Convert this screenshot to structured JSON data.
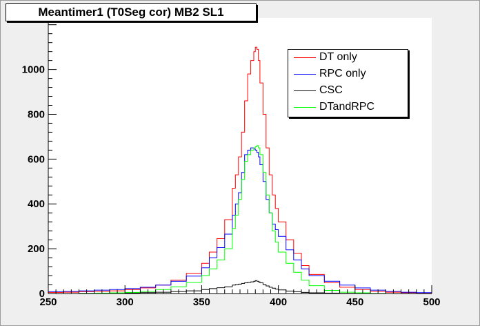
{
  "window": {
    "title": "Meantimer1 (T0Seg cor)  MB2 SL1"
  },
  "chart_data": {
    "type": "line",
    "title": "Meantimer1 (T0Seg cor)  MB2 SL1",
    "xlabel": "",
    "ylabel": "",
    "xlim": [
      250,
      500
    ],
    "ylim": [
      0,
      1230
    ],
    "x_ticks": [
      250,
      300,
      350,
      400,
      450,
      500
    ],
    "y_ticks": [
      0,
      200,
      400,
      600,
      800,
      1000
    ],
    "grid": false,
    "legend_position": "top-right",
    "step_histogram": true,
    "x": [
      250,
      260,
      270,
      280,
      290,
      300,
      310,
      320,
      330,
      340,
      350,
      355,
      360,
      365,
      370,
      372,
      374,
      376,
      378,
      380,
      382,
      384,
      385,
      386,
      387,
      388,
      390,
      392,
      394,
      396,
      398,
      400,
      405,
      410,
      415,
      420,
      430,
      440,
      450,
      460,
      470,
      480,
      490,
      500
    ],
    "series": [
      {
        "name": "DT only",
        "color": "#ff0000",
        "values": [
          5,
          6,
          8,
          10,
          12,
          18,
          25,
          38,
          60,
          90,
          135,
          185,
          245,
          330,
          470,
          530,
          610,
          720,
          860,
          980,
          1040,
          1080,
          1100,
          1090,
          1040,
          940,
          800,
          650,
          530,
          440,
          380,
          320,
          240,
          180,
          125,
          85,
          48,
          28,
          18,
          10,
          6,
          4,
          2,
          0
        ]
      },
      {
        "name": "RPC only",
        "color": "#0000ff",
        "values": [
          8,
          10,
          12,
          15,
          18,
          22,
          28,
          38,
          55,
          78,
          115,
          160,
          205,
          265,
          350,
          400,
          450,
          540,
          620,
          640,
          650,
          645,
          640,
          630,
          610,
          575,
          500,
          420,
          360,
          310,
          285,
          255,
          195,
          150,
          110,
          80,
          55,
          38,
          25,
          15,
          10,
          6,
          4,
          0
        ]
      },
      {
        "name": "CSC",
        "color": "#000000",
        "values": [
          0,
          0,
          1,
          1,
          2,
          3,
          4,
          6,
          9,
          12,
          18,
          22,
          26,
          30,
          38,
          40,
          42,
          45,
          48,
          50,
          52,
          55,
          58,
          55,
          52,
          48,
          40,
          34,
          28,
          24,
          20,
          16,
          11,
          8,
          5,
          3,
          2,
          1,
          0,
          0,
          0,
          0,
          0,
          0
        ]
      },
      {
        "name": "DTandRPC",
        "color": "#00ff00",
        "values": [
          0,
          0,
          1,
          2,
          3,
          5,
          10,
          18,
          30,
          50,
          80,
          110,
          150,
          200,
          290,
          350,
          420,
          510,
          590,
          620,
          640,
          650,
          655,
          660,
          650,
          620,
          540,
          440,
          360,
          280,
          230,
          185,
          135,
          95,
          60,
          35,
          14,
          6,
          3,
          1,
          0,
          0,
          0,
          0
        ]
      }
    ]
  }
}
